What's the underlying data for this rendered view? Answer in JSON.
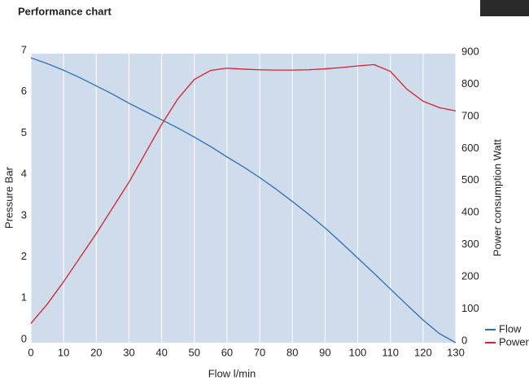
{
  "chart_data": {
    "type": "line",
    "title": "Performance chart",
    "x_label": "Flow l/min",
    "y_label": "Pressure Bar",
    "y2_label": "Power consumption Watt",
    "x": [
      0,
      5,
      10,
      15,
      20,
      25,
      30,
      35,
      40,
      45,
      50,
      55,
      60,
      65,
      70,
      75,
      80,
      85,
      90,
      95,
      100,
      105,
      110,
      115,
      120,
      125,
      130
    ],
    "series": [
      {
        "name": "Flow",
        "color": "#2f6db5",
        "axis": "y",
        "values": [
          6.9,
          6.76,
          6.6,
          6.42,
          6.22,
          6.02,
          5.8,
          5.6,
          5.4,
          5.2,
          4.98,
          4.75,
          4.5,
          4.26,
          4.0,
          3.72,
          3.42,
          3.11,
          2.78,
          2.42,
          2.05,
          1.68,
          1.3,
          0.92,
          0.55,
          0.22,
          0
        ]
      },
      {
        "name": "Power",
        "color": "#d9202a",
        "axis": "y2",
        "values": [
          60,
          120,
          190,
          265,
          340,
          420,
          500,
          590,
          680,
          760,
          820,
          848,
          855,
          852,
          850,
          849,
          849,
          850,
          853,
          857,
          862,
          866,
          845,
          790,
          752,
          732,
          722
        ]
      }
    ],
    "xlim": [
      0,
      130
    ],
    "xticks": [
      0,
      10,
      20,
      30,
      40,
      50,
      60,
      70,
      80,
      90,
      100,
      110,
      120,
      130
    ],
    "ylim": [
      0,
      7
    ],
    "yticks": [
      0,
      1,
      2,
      3,
      4,
      5,
      6,
      7
    ],
    "y2lim": [
      0,
      900
    ],
    "y2ticks": [
      0,
      100,
      200,
      300,
      400,
      500,
      600,
      700,
      800,
      900
    ],
    "grid": true,
    "legend": "bottom-right"
  }
}
